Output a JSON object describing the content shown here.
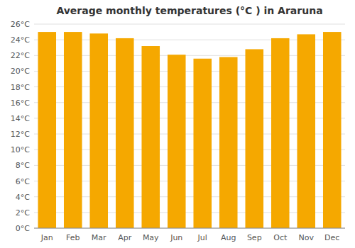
{
  "chart_data": {
    "type": "bar",
    "title": "Average monthly temperatures (°C ) in Araruna",
    "categories": [
      "Jan",
      "Feb",
      "Mar",
      "Apr",
      "May",
      "Jun",
      "Jul",
      "Aug",
      "Sep",
      "Oct",
      "Nov",
      "Dec"
    ],
    "values": [
      25.0,
      25.0,
      24.8,
      24.2,
      23.2,
      22.1,
      21.6,
      21.8,
      22.8,
      24.2,
      24.7,
      25.0
    ],
    "color": "#F5A800",
    "ylim": [
      0,
      26
    ],
    "yticks": [
      {
        "value": 0,
        "label": "0°C"
      },
      {
        "value": 2,
        "label": "2°C"
      },
      {
        "value": 4,
        "label": "4°C"
      },
      {
        "value": 6,
        "label": "6°C"
      },
      {
        "value": 8,
        "label": "8°C"
      },
      {
        "value": 10,
        "label": "10°C"
      },
      {
        "value": 12,
        "label": "12°C"
      },
      {
        "value": 14,
        "label": "14°C"
      },
      {
        "value": 16,
        "label": "16°C"
      },
      {
        "value": 18,
        "label": "18°C"
      },
      {
        "value": 20,
        "label": "20°C"
      },
      {
        "value": 22,
        "label": "22°C"
      },
      {
        "value": 24,
        "label": "24°C"
      },
      {
        "value": 26,
        "label": "26°C"
      }
    ],
    "grid": true
  }
}
